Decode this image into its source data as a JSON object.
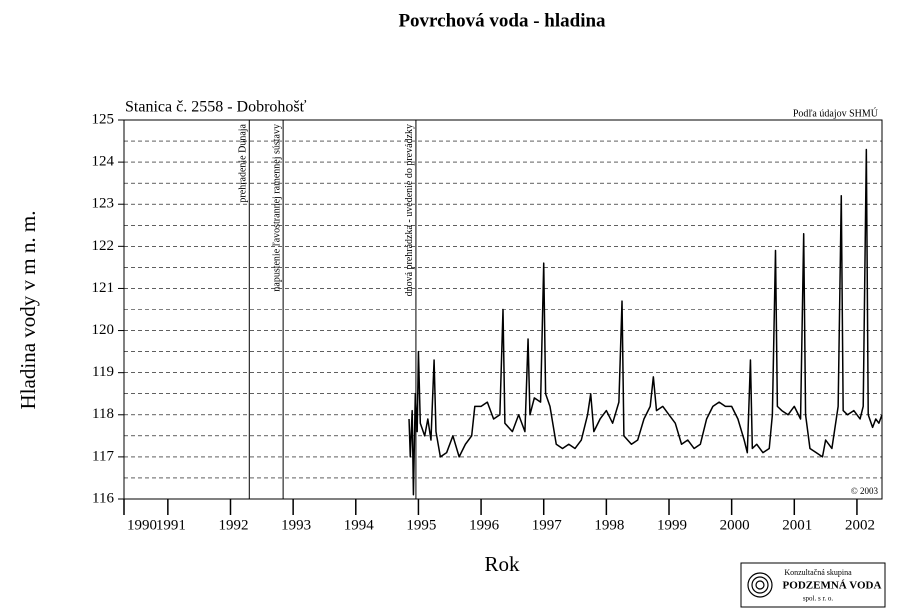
{
  "chart_data": {
    "type": "line",
    "title": "Povrchová voda - hladina",
    "subtitle": "Stanica č. 2558 - Dobrohošť",
    "source": "Podľa údajov SHMÚ",
    "copyright": "© 2003",
    "ylabel": "Hladina vody v m n. m.",
    "xlabel": "Rok",
    "logo": {
      "line1": "Konzultačná skupina",
      "line2": "PODZEMNÁ VODA",
      "line3": "spol. s r. o."
    },
    "annotations": [
      {
        "x": 1992.3,
        "text": "prehradenie Dunaja"
      },
      {
        "x": 1992.84,
        "text": "napustenie ľavostrannej ramennej sústavy"
      },
      {
        "x": 1994.96,
        "text": "dnová prehrádzka - uvedenie do prevádzky"
      }
    ],
    "xlim": [
      1990.3,
      2002.4
    ],
    "xticks": [
      {
        "value": 1990.3,
        "label": "1990"
      },
      1991,
      1992,
      1993,
      1994,
      1995,
      1996,
      1997,
      1998,
      1999,
      2000,
      2001,
      2002
    ],
    "ylim": [
      116,
      125
    ],
    "yticks": [
      116,
      117,
      118,
      119,
      120,
      121,
      122,
      123,
      124,
      125
    ],
    "ygrid": [
      116.5,
      117,
      117.5,
      118,
      118.5,
      119,
      119.5,
      120,
      120.5,
      121,
      121.5,
      122,
      122.5,
      123,
      123.5,
      124,
      124.5
    ],
    "grid": true,
    "x": [
      1994.85,
      1994.87,
      1994.9,
      1994.92,
      1994.95,
      1994.98,
      1995.0,
      1995.03,
      1995.1,
      1995.15,
      1995.2,
      1995.25,
      1995.28,
      1995.35,
      1995.45,
      1995.55,
      1995.65,
      1995.75,
      1995.85,
      1995.9,
      1996.0,
      1996.1,
      1996.2,
      1996.3,
      1996.35,
      1996.38,
      1996.5,
      1996.6,
      1996.7,
      1996.75,
      1996.78,
      1996.85,
      1996.95,
      1997.0,
      1997.03,
      1997.1,
      1997.2,
      1997.3,
      1997.4,
      1997.5,
      1997.6,
      1997.7,
      1997.75,
      1997.8,
      1997.9,
      1998.0,
      1998.1,
      1998.2,
      1998.25,
      1998.28,
      1998.4,
      1998.5,
      1998.6,
      1998.7,
      1998.75,
      1998.8,
      1998.9,
      1999.0,
      1999.1,
      1999.2,
      1999.3,
      1999.4,
      1999.5,
      1999.6,
      1999.7,
      1999.8,
      1999.9,
      2000.0,
      2000.1,
      2000.2,
      2000.25,
      2000.3,
      2000.33,
      2000.4,
      2000.5,
      2000.6,
      2000.65,
      2000.7,
      2000.73,
      2000.8,
      2000.9,
      2001.0,
      2001.1,
      2001.15,
      2001.18,
      2001.25,
      2001.35,
      2001.45,
      2001.5,
      2001.6,
      2001.7,
      2001.75,
      2001.78,
      2001.85,
      2001.95,
      2002.05,
      2002.1,
      2002.15,
      2002.18,
      2002.25,
      2002.3,
      2002.35,
      2002.4
    ],
    "series": [
      {
        "name": "Hladina",
        "color": "#000000",
        "values": [
          117.9,
          117.0,
          118.1,
          116.1,
          118.5,
          117.6,
          119.5,
          117.8,
          117.5,
          117.9,
          117.4,
          119.3,
          117.6,
          117.0,
          117.1,
          117.5,
          117.0,
          117.3,
          117.5,
          118.2,
          118.2,
          118.3,
          117.9,
          118.0,
          120.5,
          117.8,
          117.6,
          118.0,
          117.6,
          119.8,
          118.0,
          118.4,
          118.3,
          121.6,
          118.5,
          118.2,
          117.3,
          117.2,
          117.3,
          117.2,
          117.4,
          118.0,
          118.5,
          117.6,
          117.9,
          118.1,
          117.8,
          118.3,
          120.7,
          117.5,
          117.3,
          117.4,
          117.9,
          118.2,
          118.9,
          118.1,
          118.2,
          118.0,
          117.8,
          117.3,
          117.4,
          117.2,
          117.3,
          117.9,
          118.2,
          118.3,
          118.2,
          118.2,
          117.9,
          117.4,
          117.1,
          119.3,
          117.2,
          117.3,
          117.1,
          117.2,
          118.0,
          121.9,
          118.2,
          118.1,
          118.0,
          118.2,
          117.9,
          122.3,
          118.0,
          117.2,
          117.1,
          117.0,
          117.4,
          117.2,
          118.2,
          123.2,
          118.1,
          118.0,
          118.1,
          117.9,
          118.2,
          124.3,
          118.0,
          117.7,
          117.9,
          117.8,
          118.0
        ]
      }
    ]
  }
}
